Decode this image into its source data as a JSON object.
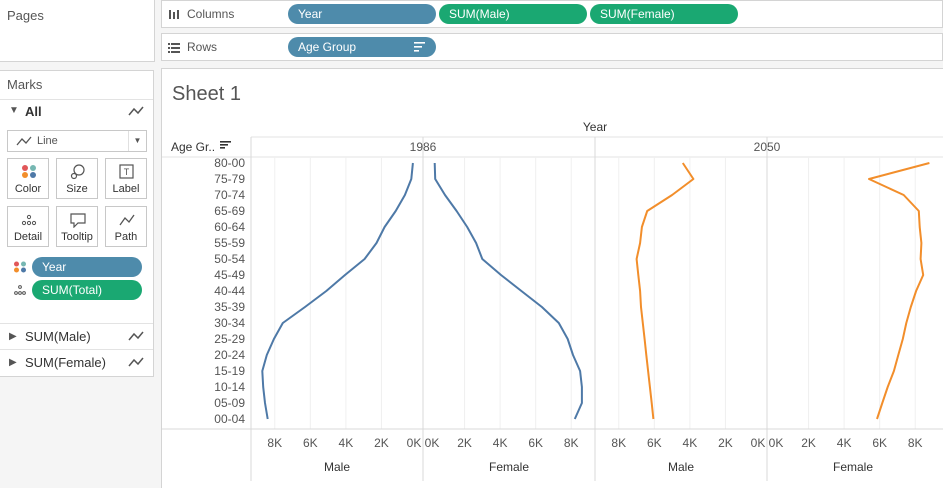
{
  "pages_panel": {
    "title": "Pages"
  },
  "marks_panel": {
    "title": "Marks",
    "all_label": "All",
    "mark_type": "Line",
    "cards": [
      {
        "label": "Color",
        "icon": "color-icon"
      },
      {
        "label": "Size",
        "icon": "size-icon"
      },
      {
        "label": "Label",
        "icon": "label-icon"
      },
      {
        "label": "Detail",
        "icon": "detail-icon"
      },
      {
        "label": "Tooltip",
        "icon": "tooltip-icon"
      },
      {
        "label": "Path",
        "icon": "path-icon"
      }
    ],
    "encodings": [
      {
        "pill": "Year",
        "color": "#4e8bab",
        "icon": "color-icon"
      },
      {
        "pill": "SUM(Total)",
        "color": "#1aa872",
        "icon": "detail-icon"
      }
    ],
    "measure_cards": [
      "SUM(Male)",
      "SUM(Female)"
    ]
  },
  "columns_shelf": {
    "label": "Columns",
    "pills": [
      {
        "text": "Year",
        "color": "#4e8bab"
      },
      {
        "text": "SUM(Male)",
        "color": "#1aa872"
      },
      {
        "text": "SUM(Female)",
        "color": "#1aa872"
      }
    ]
  },
  "rows_shelf": {
    "label": "Rows",
    "pills": [
      {
        "text": "Age Group",
        "color": "#4e8bab"
      }
    ]
  },
  "sheet": {
    "title": "Sheet 1"
  },
  "chart_data": {
    "type": "line",
    "column_header": "Year",
    "row_header": "Age Gr..",
    "years": [
      "1986",
      "2050"
    ],
    "measures": [
      "Male",
      "Female"
    ],
    "age_groups": [
      "80-00",
      "75-79",
      "70-74",
      "65-69",
      "60-64",
      "55-59",
      "50-54",
      "45-49",
      "40-44",
      "35-39",
      "30-34",
      "25-29",
      "20-24",
      "15-19",
      "10-14",
      "05-09",
      "00-04"
    ],
    "axis_ticks": [
      "8K",
      "6K",
      "4K",
      "2K",
      "0K"
    ],
    "axis_ticks_female": [
      "0K",
      "2K",
      "4K",
      "6K",
      "8K"
    ],
    "xlim": [
      0,
      9000
    ],
    "colors": {
      "1986": "#4e79a7",
      "2050": "#f28e2b"
    },
    "series": [
      {
        "year": "1986",
        "measure": "Male",
        "values": [
          230,
          320,
          680,
          1200,
          1820,
          2280,
          2950,
          4050,
          5100,
          6300,
          7550,
          8050,
          8450,
          8700,
          8650,
          8550,
          8400
        ]
      },
      {
        "year": "1986",
        "measure": "Female",
        "values": [
          320,
          350,
          900,
          1550,
          2150,
          2650,
          3000,
          4050,
          5200,
          6350,
          7300,
          7800,
          8100,
          8500,
          8600,
          8600,
          8200
        ]
      },
      {
        "year": "2050",
        "measure": "Male",
        "values": [
          4400,
          3800,
          5000,
          6400,
          6700,
          6800,
          7000,
          6900,
          6800,
          6750,
          6650,
          6550,
          6450,
          6350,
          6250,
          6150,
          6050
        ]
      },
      {
        "year": "2050",
        "measure": "Female",
        "values": [
          8800,
          5400,
          7350,
          8200,
          8250,
          8350,
          8300,
          8450,
          8050,
          7750,
          7500,
          7300,
          7050,
          6800,
          6450,
          6150,
          5850
        ]
      }
    ]
  }
}
